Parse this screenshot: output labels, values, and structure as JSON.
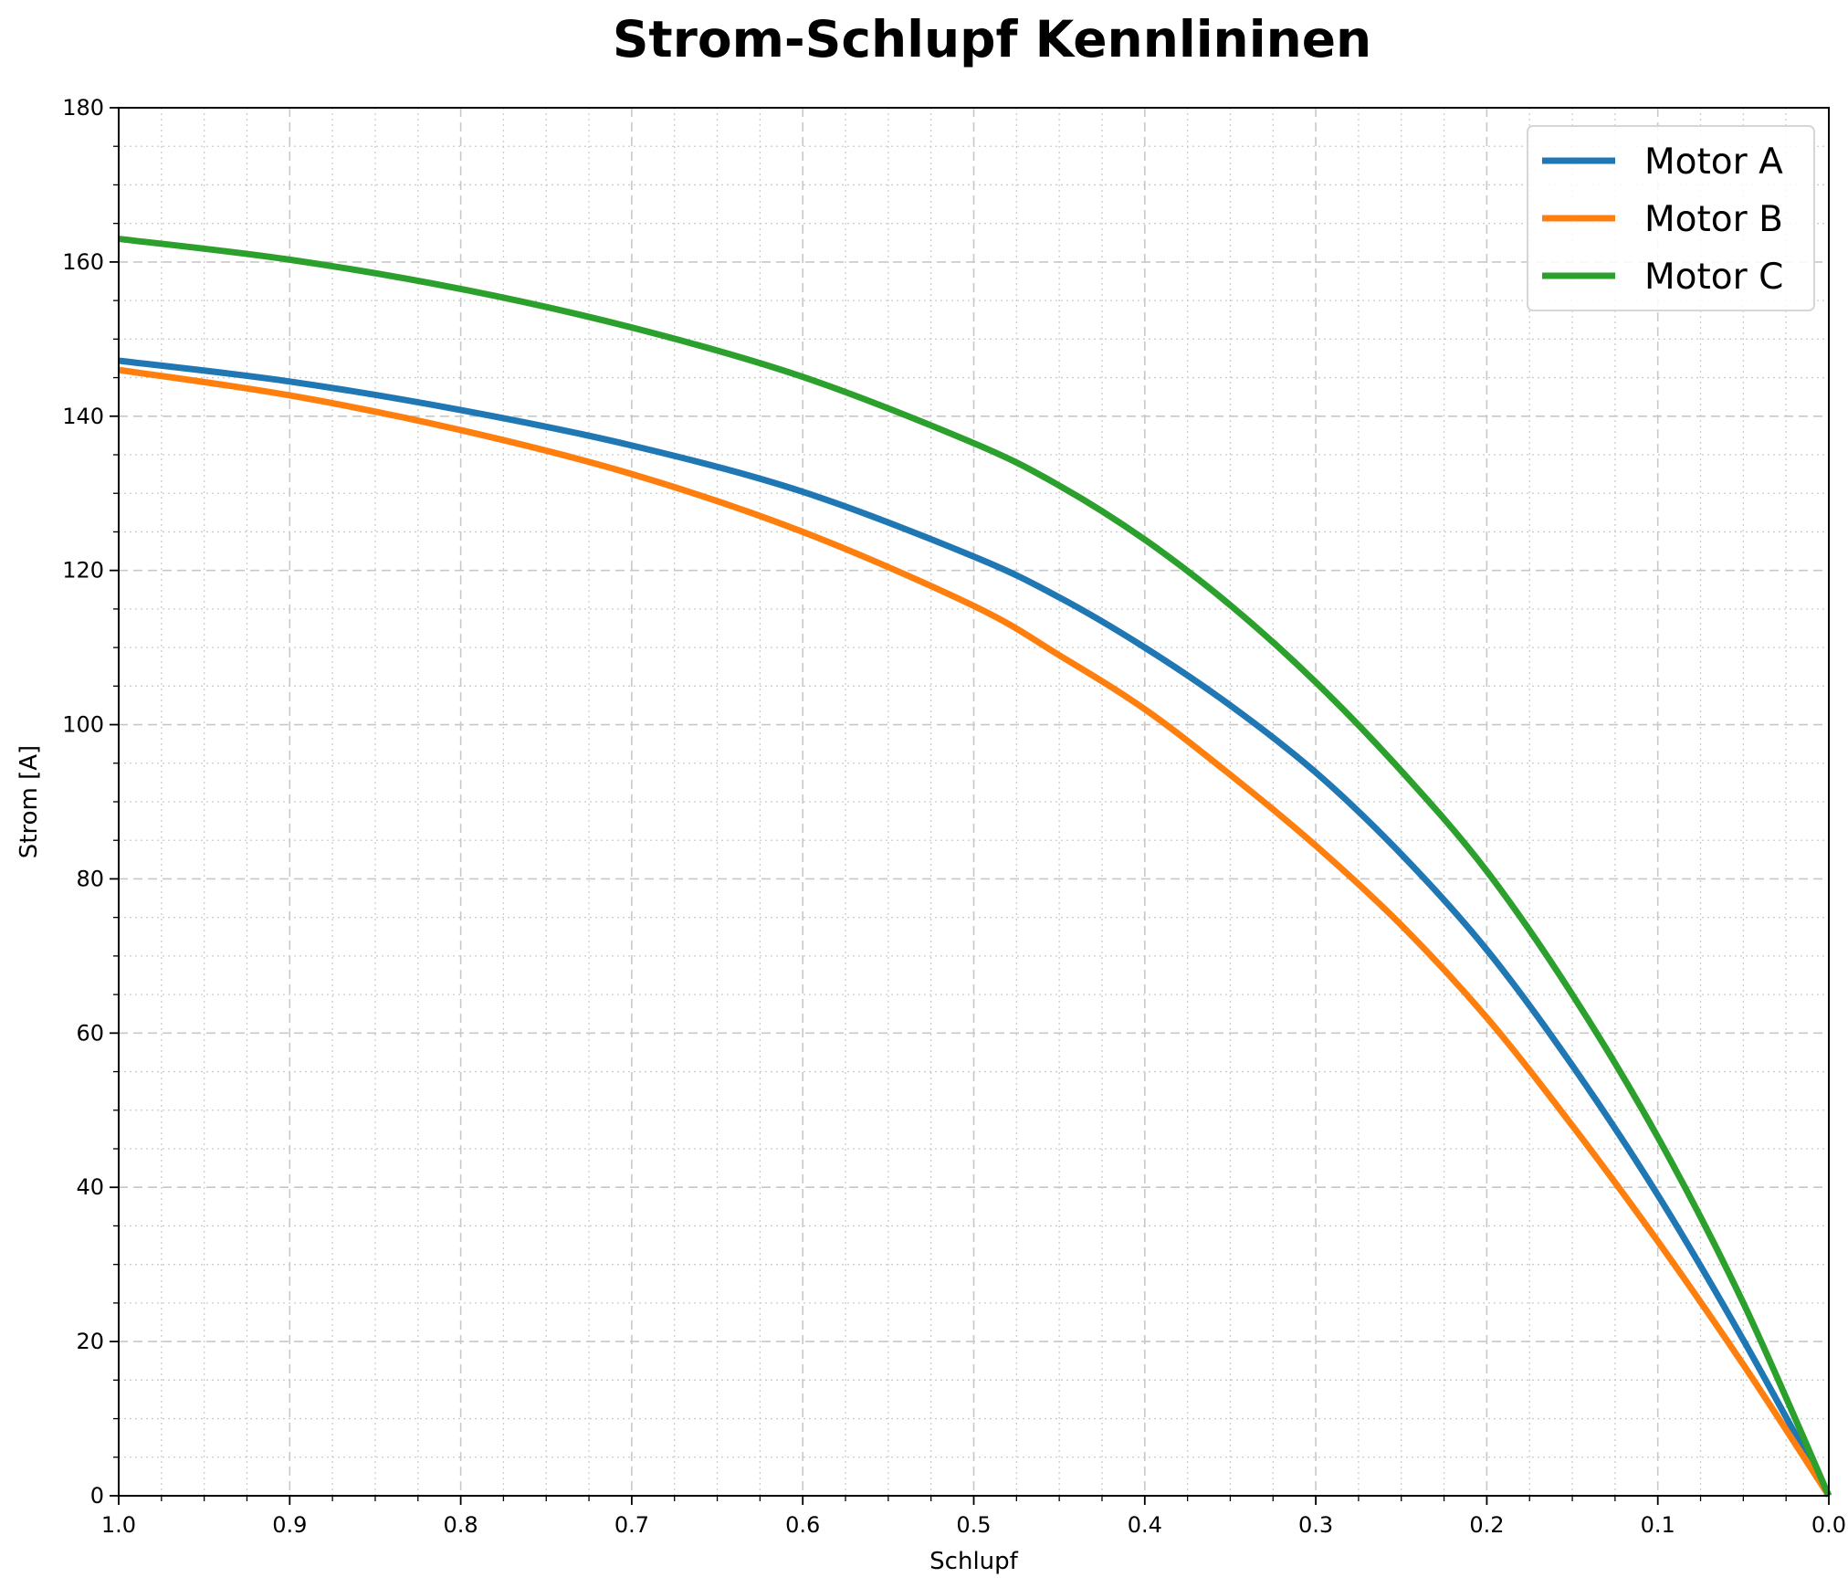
{
  "chart_data": {
    "type": "line",
    "title": "Strom-Schlupf Kennlininen",
    "xlabel": "Schlupf",
    "ylabel": "Strom [A]",
    "xlim": [
      1.0,
      0.0
    ],
    "ylim": [
      0,
      180
    ],
    "x_inverted": true,
    "xticks": [
      1.0,
      0.9,
      0.8,
      0.7,
      0.6,
      0.5,
      0.4,
      0.3,
      0.2,
      0.1,
      0.0
    ],
    "xtick_labels": [
      "1.0",
      "0.9",
      "0.8",
      "0.7",
      "0.6",
      "0.5",
      "0.4",
      "0.3",
      "0.2",
      "0.1",
      "0.0"
    ],
    "yticks": [
      0,
      20,
      40,
      60,
      80,
      100,
      120,
      140,
      160,
      180
    ],
    "ytick_labels": [
      "0",
      "20",
      "40",
      "60",
      "80",
      "100",
      "120",
      "140",
      "160",
      "180"
    ],
    "grid": {
      "major": true,
      "minor": true
    },
    "legend_position": "top-right",
    "x": [
      1.0,
      0.9,
      0.8,
      0.7,
      0.6,
      0.5,
      0.45,
      0.4,
      0.35,
      0.3,
      0.25,
      0.2,
      0.15,
      0.1,
      0.05,
      0.0
    ],
    "series": [
      {
        "name": "Motor A",
        "color": "#1f77b4",
        "values": [
          147.2,
          144.5,
          140.8,
          136.2,
          130.2,
          121.8,
          116.5,
          110.0,
          102.5,
          93.8,
          83.2,
          70.8,
          55.8,
          39.0,
          20.2,
          0.0
        ]
      },
      {
        "name": "Motor B",
        "color": "#ff7f0e",
        "values": [
          146.0,
          142.7,
          138.2,
          132.5,
          125.0,
          115.4,
          109.0,
          102.0,
          93.5,
          84.3,
          74.0,
          62.0,
          48.0,
          33.0,
          17.0,
          0.0
        ]
      },
      {
        "name": "Motor C",
        "color": "#2ca02c",
        "values": [
          163.0,
          160.3,
          156.5,
          151.5,
          145.1,
          136.5,
          131.0,
          124.0,
          115.5,
          105.5,
          94.0,
          81.0,
          65.0,
          46.5,
          25.0,
          0.0
        ]
      }
    ]
  }
}
